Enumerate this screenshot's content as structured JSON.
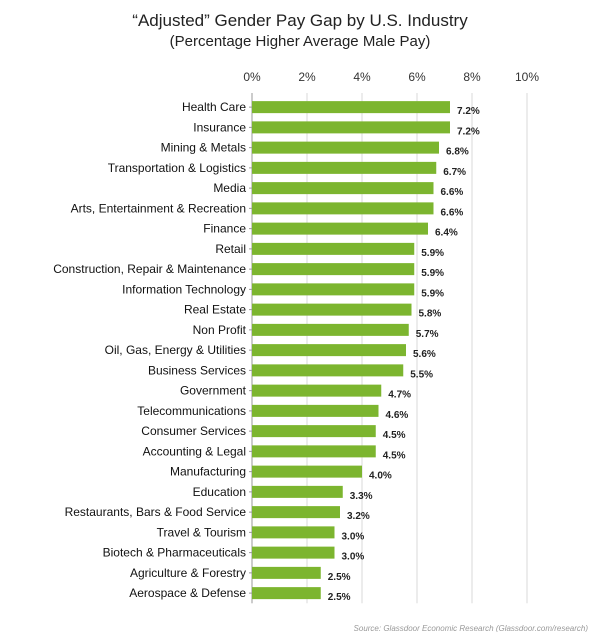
{
  "chart_data": {
    "type": "bar",
    "orientation": "horizontal",
    "title": "“Adjusted” Gender Pay Gap by U.S. Industry",
    "subtitle": "(Percentage Higher Average Male Pay)",
    "xlabel": "",
    "ylabel": "",
    "xlim": [
      0,
      10
    ],
    "x_ticks": [
      "0%",
      "2%",
      "4%",
      "6%",
      "8%",
      "10%"
    ],
    "x_tick_values": [
      0,
      2,
      4,
      6,
      8,
      10
    ],
    "grid": true,
    "bar_color": "#7cb52f",
    "categories": [
      "Health Care",
      "Insurance",
      "Mining & Metals",
      "Transportation & Logistics",
      "Media",
      "Arts, Entertainment & Recreation",
      "Finance",
      "Retail",
      "Construction, Repair & Maintenance",
      "Information Technology",
      "Real Estate",
      "Non Profit",
      "Oil, Gas, Energy & Utilities",
      "Business Services",
      "Government",
      "Telecommunications",
      "Consumer Services",
      "Accounting & Legal",
      "Manufacturing",
      "Education",
      "Restaurants, Bars & Food Service",
      "Travel & Tourism",
      "Biotech & Pharmaceuticals",
      "Agriculture & Forestry",
      "Aerospace & Defense"
    ],
    "values": [
      7.2,
      7.2,
      6.8,
      6.7,
      6.6,
      6.6,
      6.4,
      5.9,
      5.9,
      5.9,
      5.8,
      5.7,
      5.6,
      5.5,
      4.7,
      4.6,
      4.5,
      4.5,
      4.0,
      3.3,
      3.2,
      3.0,
      3.0,
      2.5,
      2.5
    ],
    "value_labels": [
      "7.2%",
      "7.2%",
      "6.8%",
      "6.7%",
      "6.6%",
      "6.6%",
      "6.4%",
      "5.9%",
      "5.9%",
      "5.9%",
      "5.8%",
      "5.7%",
      "5.6%",
      "5.5%",
      "4.7%",
      "4.6%",
      "4.5%",
      "4.5%",
      "4.0%",
      "3.3%",
      "3.2%",
      "3.0%",
      "3.0%",
      "2.5%",
      "2.5%"
    ]
  },
  "source_note": "Source: Glassdoor Economic Research (Glassdoor.com/research)"
}
